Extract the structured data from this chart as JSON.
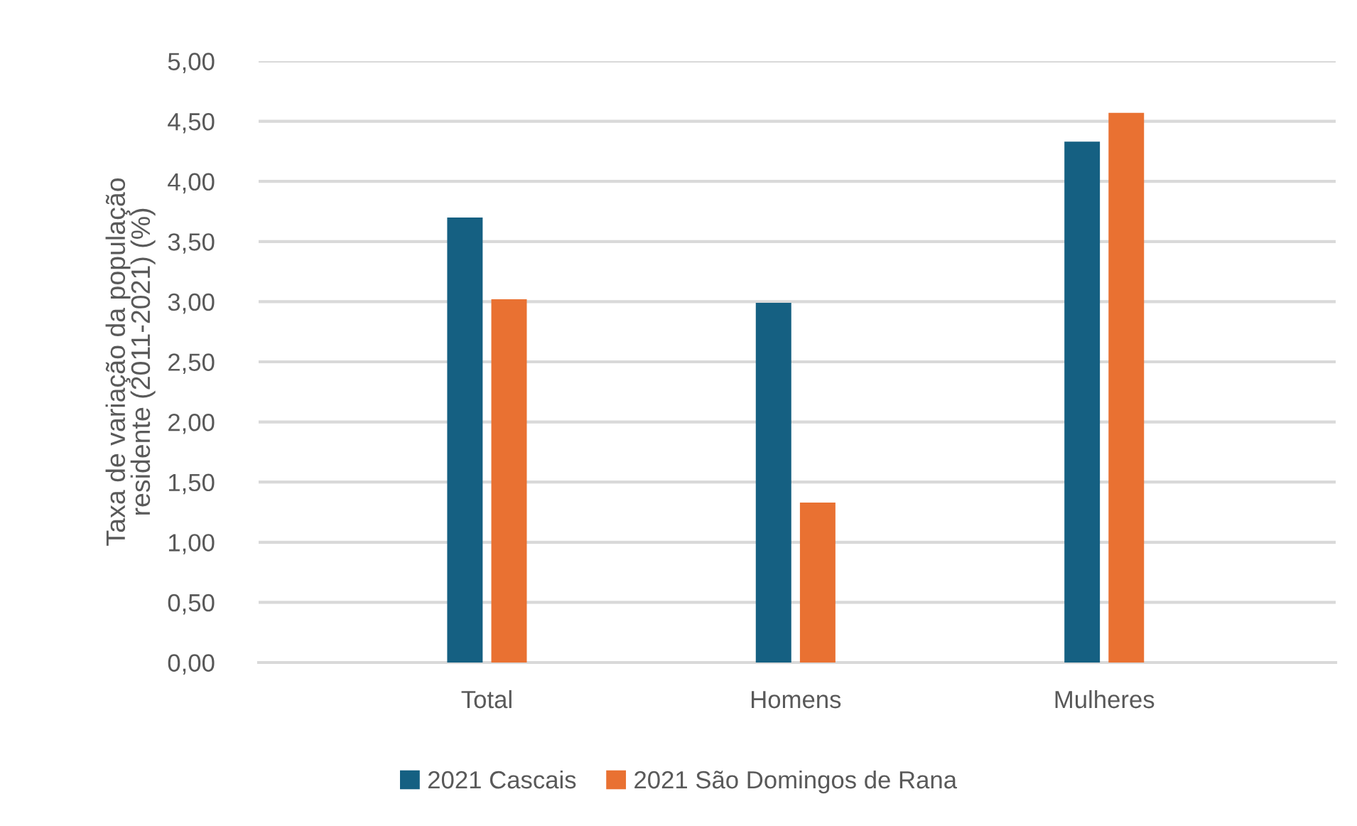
{
  "chart_data": {
    "type": "bar",
    "ylabel": "Taxa de variação da população\nresidente (2011-2021) (%)",
    "categories": [
      "Total",
      "Homens",
      "Mulheres"
    ],
    "series": [
      {
        "name": "2021 Cascais",
        "color": "#156082",
        "values": [
          3.7,
          2.99,
          4.33
        ]
      },
      {
        "name": "2021 São Domingos de Rana",
        "color": "#e97132",
        "values": [
          3.02,
          1.33,
          4.57
        ]
      }
    ],
    "ylim": [
      0,
      5
    ],
    "yticks": [
      {
        "value": 0,
        "label": "0,00"
      },
      {
        "value": 0.5,
        "label": "0,50"
      },
      {
        "value": 1,
        "label": "1,00"
      },
      {
        "value": 1.5,
        "label": "1,50"
      },
      {
        "value": 2,
        "label": "2,00"
      },
      {
        "value": 2.5,
        "label": "2,50"
      },
      {
        "value": 3,
        "label": "3,00"
      },
      {
        "value": 3.5,
        "label": "3,50"
      },
      {
        "value": 4,
        "label": "4,00"
      },
      {
        "value": 4.5,
        "label": "4,50"
      },
      {
        "value": 5,
        "label": "5,00"
      }
    ],
    "grid": "y",
    "legend": "bottom"
  }
}
